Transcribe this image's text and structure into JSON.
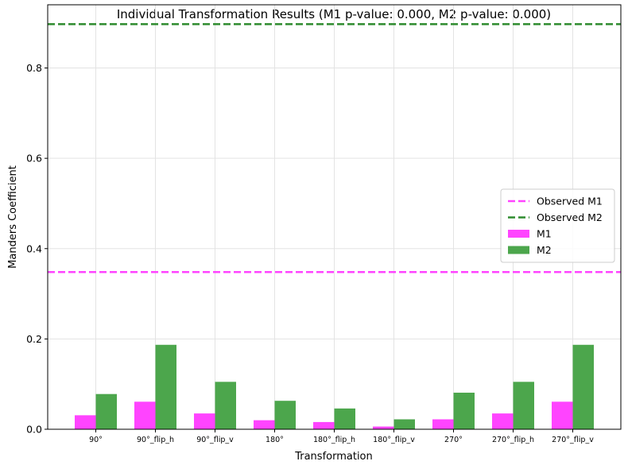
{
  "chart_data": {
    "type": "bar",
    "title": "Individual Transformation Results (M1 p-value: 0.000, M2 p-value: 0.000)",
    "xlabel": "Transformation",
    "ylabel": "Manders Coefficient",
    "ylim": [
      0,
      0.94
    ],
    "yticks": [
      0.0,
      0.2,
      0.4,
      0.6,
      0.8
    ],
    "ytick_labels": [
      "0.0",
      "0.2",
      "0.4",
      "0.6",
      "0.8"
    ],
    "grid": true,
    "legend_position": "center-right",
    "categories": [
      "90°",
      "90°_flip_h",
      "90°_flip_v",
      "180°",
      "180°_flip_h",
      "180°_flip_v",
      "270°",
      "270°_flip_h",
      "270°_flip_v"
    ],
    "series": [
      {
        "name": "M1",
        "color": "#ff44ff",
        "values": [
          0.031,
          0.061,
          0.035,
          0.02,
          0.016,
          0.006,
          0.022,
          0.035,
          0.061
        ]
      },
      {
        "name": "M2",
        "color": "#4ca64c",
        "values": [
          0.078,
          0.187,
          0.105,
          0.063,
          0.046,
          0.022,
          0.081,
          0.105,
          0.187
        ]
      }
    ],
    "reference_lines": [
      {
        "name": "Observed M1",
        "color": "#ff44ff",
        "value": 0.348,
        "style": "dashed"
      },
      {
        "name": "Observed M2",
        "color": "#2e8b2e",
        "value": 0.897,
        "style": "dashed"
      }
    ]
  }
}
